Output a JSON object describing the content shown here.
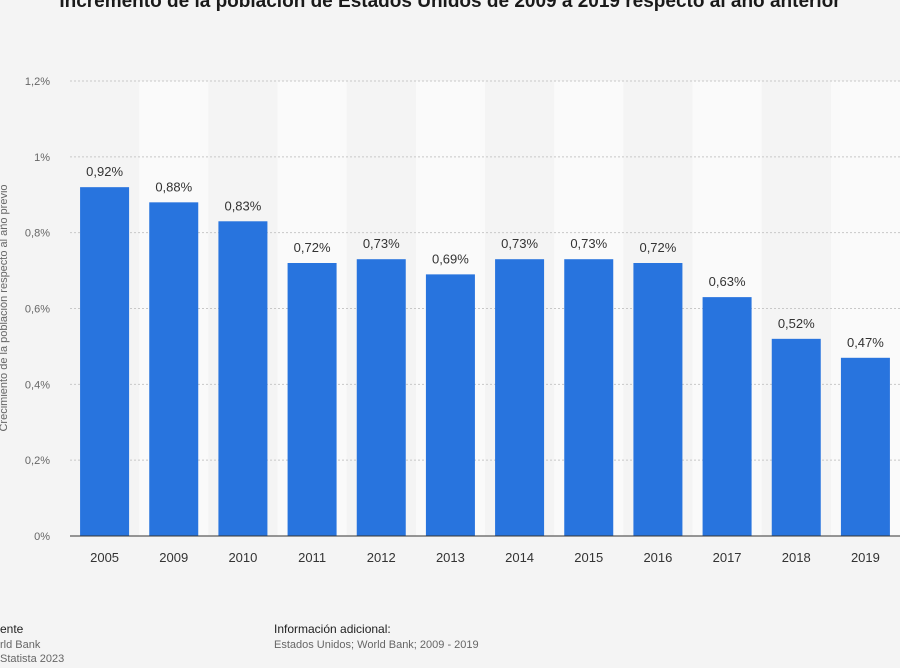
{
  "title": "Incremento de la población de Estados Unidos de 2009 a 2019 respecto al año anterior",
  "chart_data": {
    "type": "bar",
    "title": "Incremento de la población de Estados Unidos de 2009 a 2019 respecto al año anterior",
    "xlabel": "",
    "ylabel": "Crecimiento de la población respecto al año previo",
    "categories": [
      "2005",
      "2009",
      "2010",
      "2011",
      "2012",
      "2013",
      "2014",
      "2015",
      "2016",
      "2017",
      "2018",
      "2019"
    ],
    "values": [
      0.92,
      0.88,
      0.83,
      0.72,
      0.73,
      0.69,
      0.73,
      0.73,
      0.72,
      0.63,
      0.52,
      0.47
    ],
    "value_labels": [
      "0,92%",
      "0,88%",
      "0,83%",
      "0,72%",
      "0,73%",
      "0,69%",
      "0,73%",
      "0,73%",
      "0,72%",
      "0,63%",
      "0,52%",
      "0,47%"
    ],
    "y_ticks": [
      0,
      0.2,
      0.4,
      0.6,
      0.8,
      1,
      1.2
    ],
    "y_tick_labels": [
      "0%",
      "0,2%",
      "0,4%",
      "0,6%",
      "0,8%",
      "1%",
      "1,2%"
    ],
    "ylim": [
      0,
      1.2
    ],
    "grid": true,
    "legend": "none",
    "bar_color": "#2874de"
  },
  "footer": {
    "source_heading": "ente",
    "source_line1": "rld Bank",
    "source_line2": "Statista 2023",
    "info_heading": "Información adicional:",
    "info_text": "Estados Unidos; World Bank; 2009 - 2019"
  }
}
